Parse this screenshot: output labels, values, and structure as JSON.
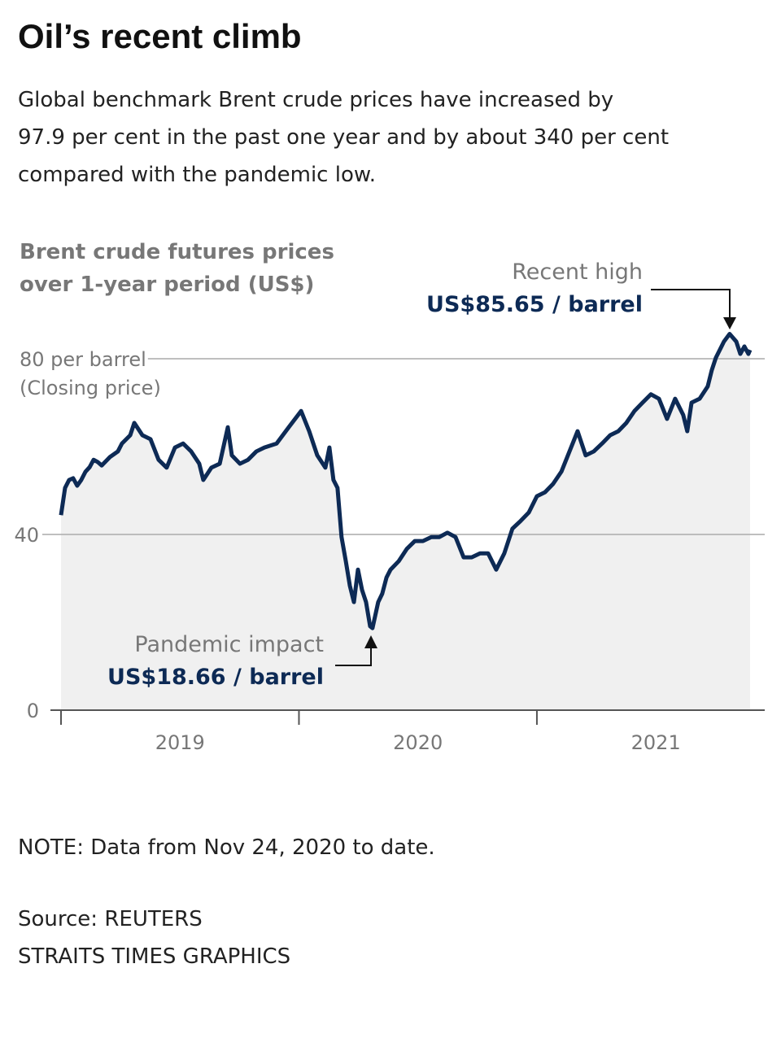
{
  "chart_data": {
    "type": "line",
    "title": "Oil’s recent climb",
    "subtitle": [
      "Global benchmark Brent crude prices have increased by",
      "97.9 per cent in the past one year and by about 340 per cent",
      "compared with the pandemic low."
    ],
    "ylabel": [
      "Brent crude futures prices",
      "over 1-year period (US$)"
    ],
    "ylabel_note": "(Closing price)",
    "annotations": [
      {
        "label": "Recent high",
        "value_label": "US$85.65 / barrel"
      },
      {
        "label": "Pandemic impact",
        "value_label": "US$18.66 / barrel"
      }
    ],
    "note": "NOTE: Data from Nov 24, 2020 to date.",
    "source": "Source: REUTERS",
    "credit": "STRAITS TIMES GRAPHICS",
    "xlim": [
      2019,
      2021.96
    ],
    "xticks": [
      2019,
      2020,
      2021
    ],
    "ylim": [
      0,
      90
    ],
    "yticks": [
      0,
      40,
      {
        "value": 80,
        "label": "80 per barrel"
      }
    ],
    "grid": true,
    "series": [
      {
        "name": "Brent crude",
        "color": "#0d2a55",
        "area_color": "#f0f0f0",
        "x": [
          2019.0,
          2019.017,
          2019.034,
          2019.051,
          2019.068,
          2019.085,
          2019.103,
          2019.12,
          2019.137,
          2019.154,
          2019.171,
          2019.205,
          2019.239,
          2019.256,
          2019.291,
          2019.308,
          2019.342,
          2019.376,
          2019.41,
          2019.444,
          2019.479,
          2019.513,
          2019.547,
          2019.581,
          2019.598,
          2019.632,
          2019.667,
          2019.701,
          2019.718,
          2019.752,
          2019.786,
          2019.821,
          2019.855,
          2019.906,
          2019.957,
          2020.009,
          2020.043,
          2020.077,
          2020.111,
          2020.128,
          2020.145,
          2020.162,
          2020.179,
          2020.197,
          2020.214,
          2020.231,
          2020.248,
          2020.265,
          2020.282,
          2020.299,
          2020.309,
          2020.333,
          2020.35,
          2020.368,
          2020.385,
          2020.419,
          2020.453,
          2020.487,
          2020.521,
          2020.556,
          2020.59,
          2020.624,
          2020.658,
          2020.692,
          2020.726,
          2020.761,
          2020.795,
          2020.829,
          2020.863,
          2020.897,
          2020.932,
          2020.966,
          2021.0,
          2021.034,
          2021.068,
          2021.103,
          2021.137,
          2021.171,
          2021.205,
          2021.239,
          2021.274,
          2021.308,
          2021.342,
          2021.376,
          2021.41,
          2021.444,
          2021.479,
          2021.513,
          2021.547,
          2021.581,
          2021.615,
          2021.632,
          2021.65,
          2021.684,
          2021.718,
          2021.735,
          2021.752,
          2021.786,
          2021.81,
          2021.838,
          2021.855,
          2021.872,
          2021.889,
          2021.896
        ],
        "values": [
          44.4,
          50.6,
          52.4,
          52.8,
          51.1,
          52.4,
          54.3,
          55.3,
          57.0,
          56.5,
          55.7,
          57.6,
          58.9,
          60.7,
          62.6,
          65.4,
          62.6,
          61.7,
          57.0,
          55.2,
          59.8,
          60.7,
          58.9,
          56.1,
          52.4,
          55.2,
          56.1,
          64.4,
          58.0,
          56.1,
          57.0,
          58.9,
          59.8,
          60.7,
          64.4,
          68.1,
          63.5,
          58.0,
          55.2,
          59.8,
          52.4,
          50.6,
          39.4,
          33.9,
          28.3,
          24.6,
          32.0,
          27.4,
          24.6,
          19.1,
          18.66,
          24.6,
          26.5,
          30.2,
          32.0,
          33.9,
          36.7,
          38.5,
          38.5,
          39.4,
          39.4,
          40.4,
          39.4,
          34.8,
          34.8,
          35.7,
          35.7,
          32.0,
          35.7,
          41.3,
          43.1,
          45.0,
          48.7,
          49.6,
          51.5,
          54.3,
          58.9,
          63.5,
          58.0,
          58.9,
          60.7,
          62.6,
          63.5,
          65.4,
          68.1,
          70.0,
          71.9,
          70.9,
          66.3,
          70.9,
          67.2,
          63.5,
          70.0,
          70.9,
          73.7,
          77.4,
          80.2,
          83.9,
          85.65,
          83.9,
          81.1,
          82.8,
          81.1,
          82.0
        ]
      }
    ]
  }
}
